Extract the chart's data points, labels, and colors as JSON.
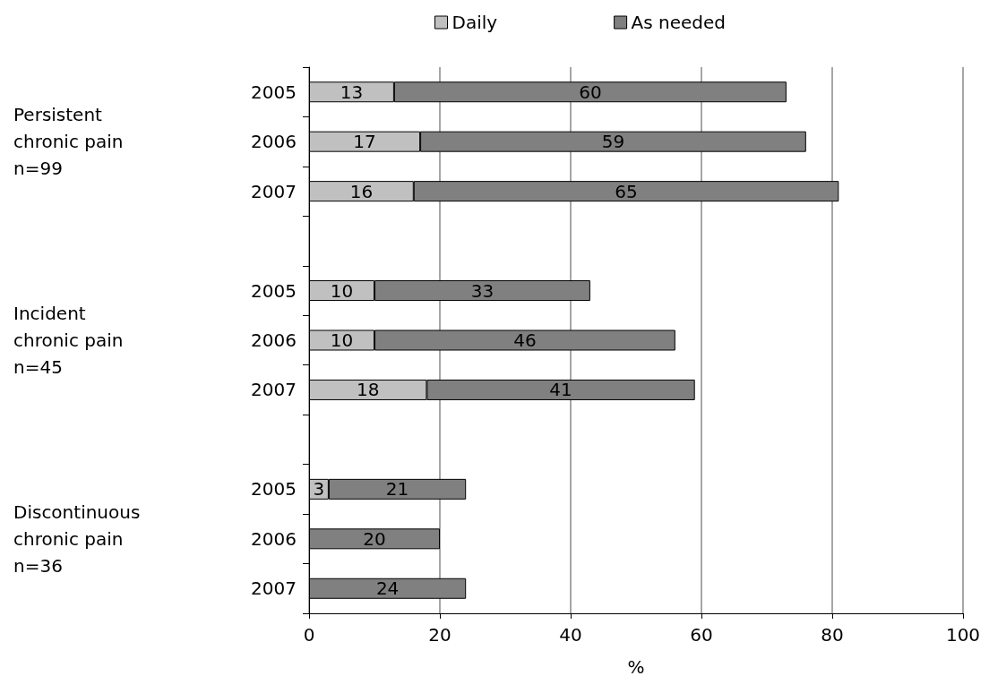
{
  "chart_data": {
    "type": "bar",
    "orientation": "horizontal",
    "stacked": true,
    "xlabel": "%",
    "categories": [
      "2005",
      "2006",
      "2007",
      null,
      "2005",
      "2006",
      "2007",
      null,
      "2005",
      "2006",
      "2007"
    ],
    "series": [
      {
        "name": "Daily",
        "color": "#c0c0c0",
        "values": [
          13,
          17,
          16,
          null,
          10,
          10,
          18,
          null,
          3,
          null,
          null
        ]
      },
      {
        "name": "As needed",
        "color": "#808080",
        "values": [
          60,
          59,
          65,
          null,
          33,
          46,
          41,
          null,
          21,
          20,
          24
        ]
      }
    ],
    "annotations": [
      "Persistent\nchronic pain\nn=99",
      "Incident\nchronic pain\nn=45",
      "Discontinuous\nchronic pain\nn=36"
    ],
    "xlim": [
      0,
      100
    ],
    "xticks": [
      0,
      20,
      40,
      60,
      80,
      100
    ],
    "grid": "x",
    "legend": "top",
    "data_labels": true
  }
}
